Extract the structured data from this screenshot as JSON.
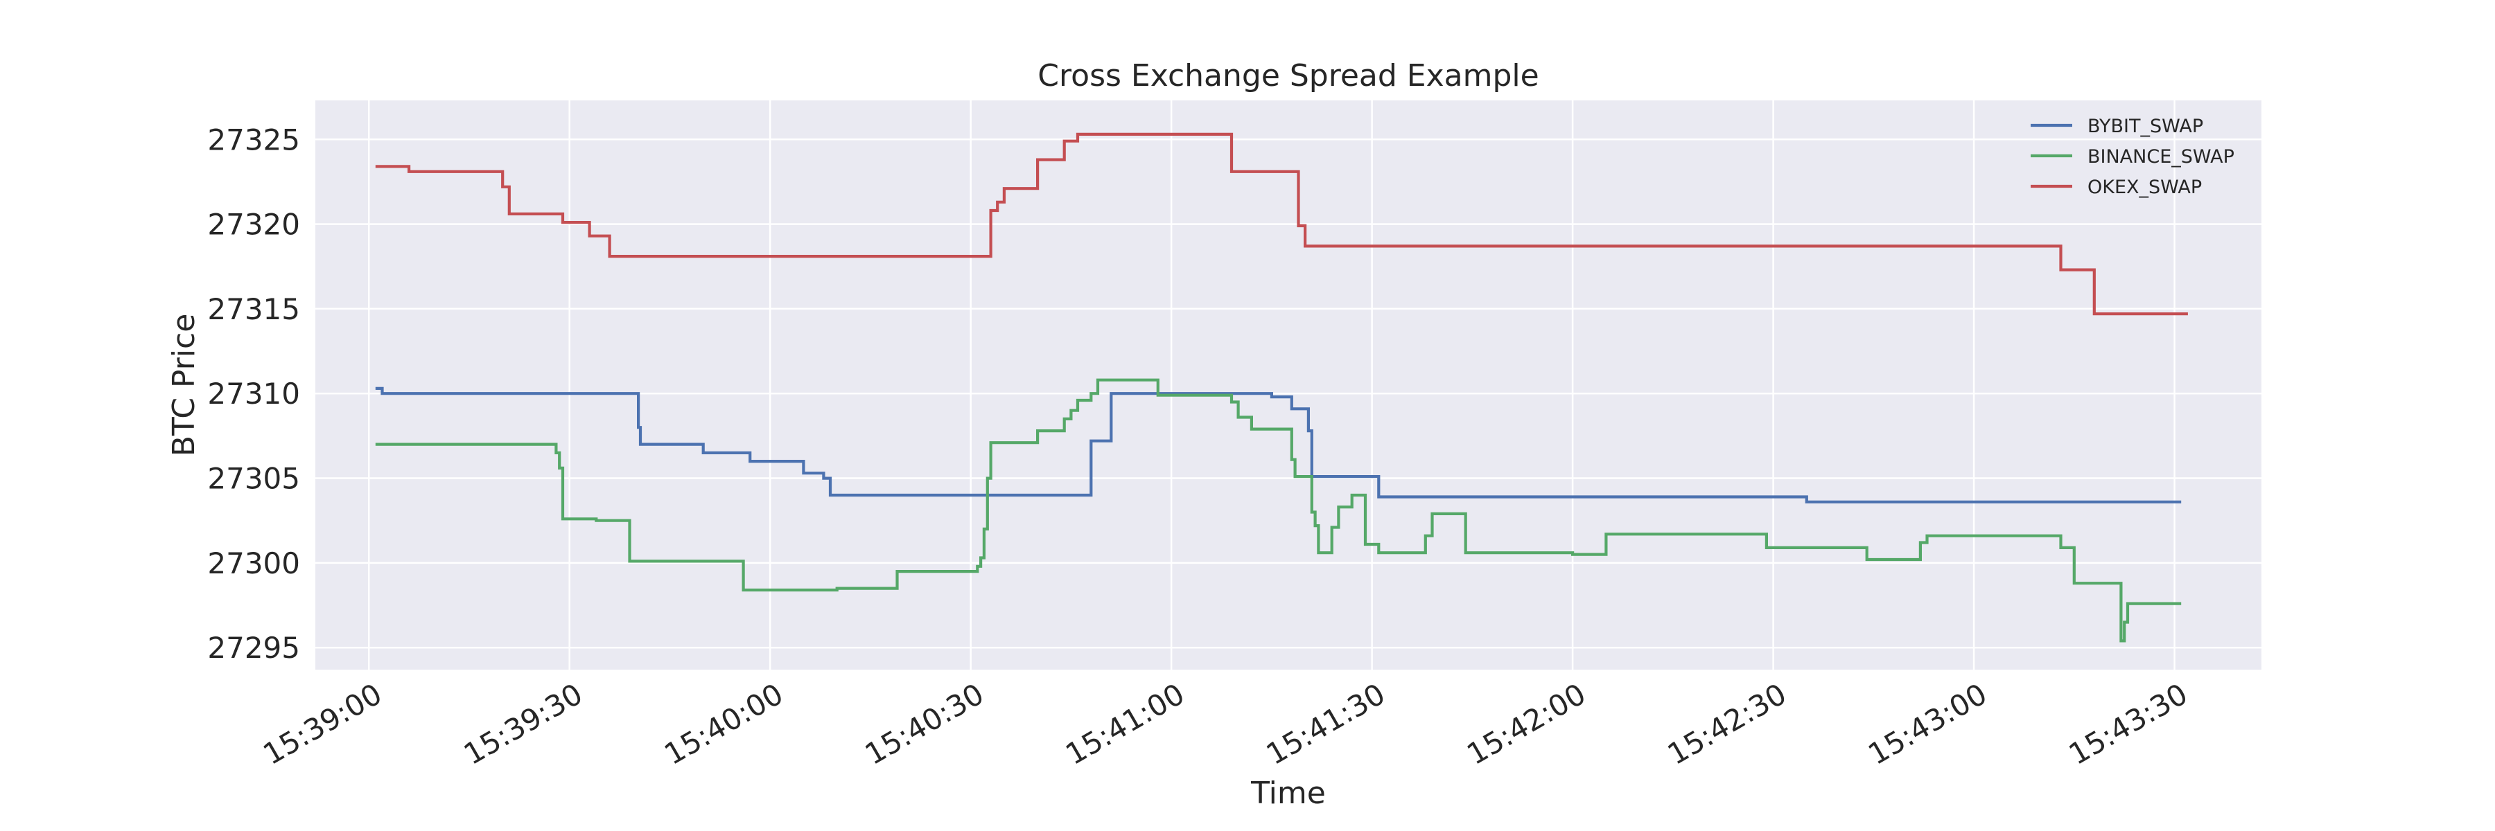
{
  "chart_data": {
    "type": "line",
    "title": "Cross Exchange Spread Example",
    "xlabel": "Time",
    "ylabel": "BTC Price",
    "x_unit": "time",
    "xlim": [
      "15:38:52",
      "15:43:43"
    ],
    "ylim": [
      27293.7,
      27327.3
    ],
    "x_ticks": [
      "15:39:00",
      "15:39:30",
      "15:40:00",
      "15:40:30",
      "15:41:00",
      "15:41:30",
      "15:42:00",
      "15:42:30",
      "15:43:00",
      "15:43:30"
    ],
    "y_ticks": [
      27295,
      27300,
      27305,
      27310,
      27315,
      27320,
      27325
    ],
    "grid": true,
    "legend_position": "top-right",
    "step": true,
    "series": [
      {
        "name": "BYBIT_SWAP",
        "color": "#4c72b0",
        "points": [
          [
            "15:39:01",
            27310.3
          ],
          [
            "15:39:02",
            27310.0
          ],
          [
            "15:39:40",
            27310.0
          ],
          [
            "15:39:40.3",
            27308.0
          ],
          [
            "15:39:40.6",
            27307.0
          ],
          [
            "15:39:50",
            27306.5
          ],
          [
            "15:39:57",
            27306.0
          ],
          [
            "15:40:05",
            27305.3
          ],
          [
            "15:40:08",
            27305.0
          ],
          [
            "15:40:09",
            27304.0
          ],
          [
            "15:40:48",
            27307.2
          ],
          [
            "15:40:51",
            27310.0
          ],
          [
            "15:41:15",
            27309.8
          ],
          [
            "15:41:18",
            27309.1
          ],
          [
            "15:41:20.5",
            27307.8
          ],
          [
            "15:41:21",
            27305.1
          ],
          [
            "15:41:31",
            27303.9
          ],
          [
            "15:42:35",
            27303.6
          ],
          [
            "15:43:31",
            27303.6
          ]
        ]
      },
      {
        "name": "BINANCE_SWAP",
        "color": "#55a868",
        "points": [
          [
            "15:39:01",
            27307.0
          ],
          [
            "15:39:28",
            27306.5
          ],
          [
            "15:39:28.5",
            27305.6
          ],
          [
            "15:39:29",
            27302.6
          ],
          [
            "15:39:34",
            27302.5
          ],
          [
            "15:39:39",
            27300.1
          ],
          [
            "15:39:56",
            27298.4
          ],
          [
            "15:40:10",
            27298.5
          ],
          [
            "15:40:19",
            27299.5
          ],
          [
            "15:40:31",
            27299.8
          ],
          [
            "15:40:31.5",
            27300.3
          ],
          [
            "15:40:32",
            27302.0
          ],
          [
            "15:40:32.5",
            27305.0
          ],
          [
            "15:40:33",
            27307.1
          ],
          [
            "15:40:40",
            27307.8
          ],
          [
            "15:40:44",
            27308.5
          ],
          [
            "15:40:45",
            27309.0
          ],
          [
            "15:40:46",
            27309.6
          ],
          [
            "15:40:48",
            27310.0
          ],
          [
            "15:40:49",
            27310.8
          ],
          [
            "15:40:58",
            27309.9
          ],
          [
            "15:41:09",
            27309.5
          ],
          [
            "15:41:10",
            27308.6
          ],
          [
            "15:41:12",
            27307.9
          ],
          [
            "15:41:18",
            27306.1
          ],
          [
            "15:41:18.5",
            27305.1
          ],
          [
            "15:41:21",
            27303.0
          ],
          [
            "15:41:21.5",
            27302.2
          ],
          [
            "15:41:22",
            27300.6
          ],
          [
            "15:41:24",
            27302.1
          ],
          [
            "15:41:25",
            27303.3
          ],
          [
            "15:41:27",
            27304.0
          ],
          [
            "15:41:29",
            27301.1
          ],
          [
            "15:41:31",
            27300.6
          ],
          [
            "15:41:38",
            27301.6
          ],
          [
            "15:41:39",
            27302.9
          ],
          [
            "15:41:44",
            27300.6
          ],
          [
            "15:42:00",
            27300.5
          ],
          [
            "15:42:05",
            27301.7
          ],
          [
            "15:42:29",
            27300.9
          ],
          [
            "15:42:44",
            27300.2
          ],
          [
            "15:42:52",
            27301.2
          ],
          [
            "15:42:53",
            27301.6
          ],
          [
            "15:43:13",
            27300.9
          ],
          [
            "15:43:15",
            27298.8
          ],
          [
            "15:43:22",
            27295.4
          ],
          [
            "15:43:22.5",
            27296.5
          ],
          [
            "15:43:23",
            27297.6
          ],
          [
            "15:43:31",
            27297.6
          ]
        ]
      },
      {
        "name": "OKEX_SWAP",
        "color": "#c44e52",
        "points": [
          [
            "15:39:01",
            27323.4
          ],
          [
            "15:39:06",
            27323.1
          ],
          [
            "15:39:20",
            27322.2
          ],
          [
            "15:39:21",
            27320.6
          ],
          [
            "15:39:29",
            27320.1
          ],
          [
            "15:39:33",
            27319.3
          ],
          [
            "15:39:36",
            27318.1
          ],
          [
            "15:40:33",
            27320.8
          ],
          [
            "15:40:34",
            27321.3
          ],
          [
            "15:40:35",
            27322.1
          ],
          [
            "15:40:40",
            27323.8
          ],
          [
            "15:40:44",
            27324.9
          ],
          [
            "15:40:46",
            27325.3
          ],
          [
            "15:41:09",
            27323.1
          ],
          [
            "15:41:19",
            27319.9
          ],
          [
            "15:41:20",
            27318.7
          ],
          [
            "15:43:13",
            27317.3
          ],
          [
            "15:43:18",
            27314.7
          ],
          [
            "15:43:32",
            27314.7
          ]
        ]
      }
    ]
  }
}
